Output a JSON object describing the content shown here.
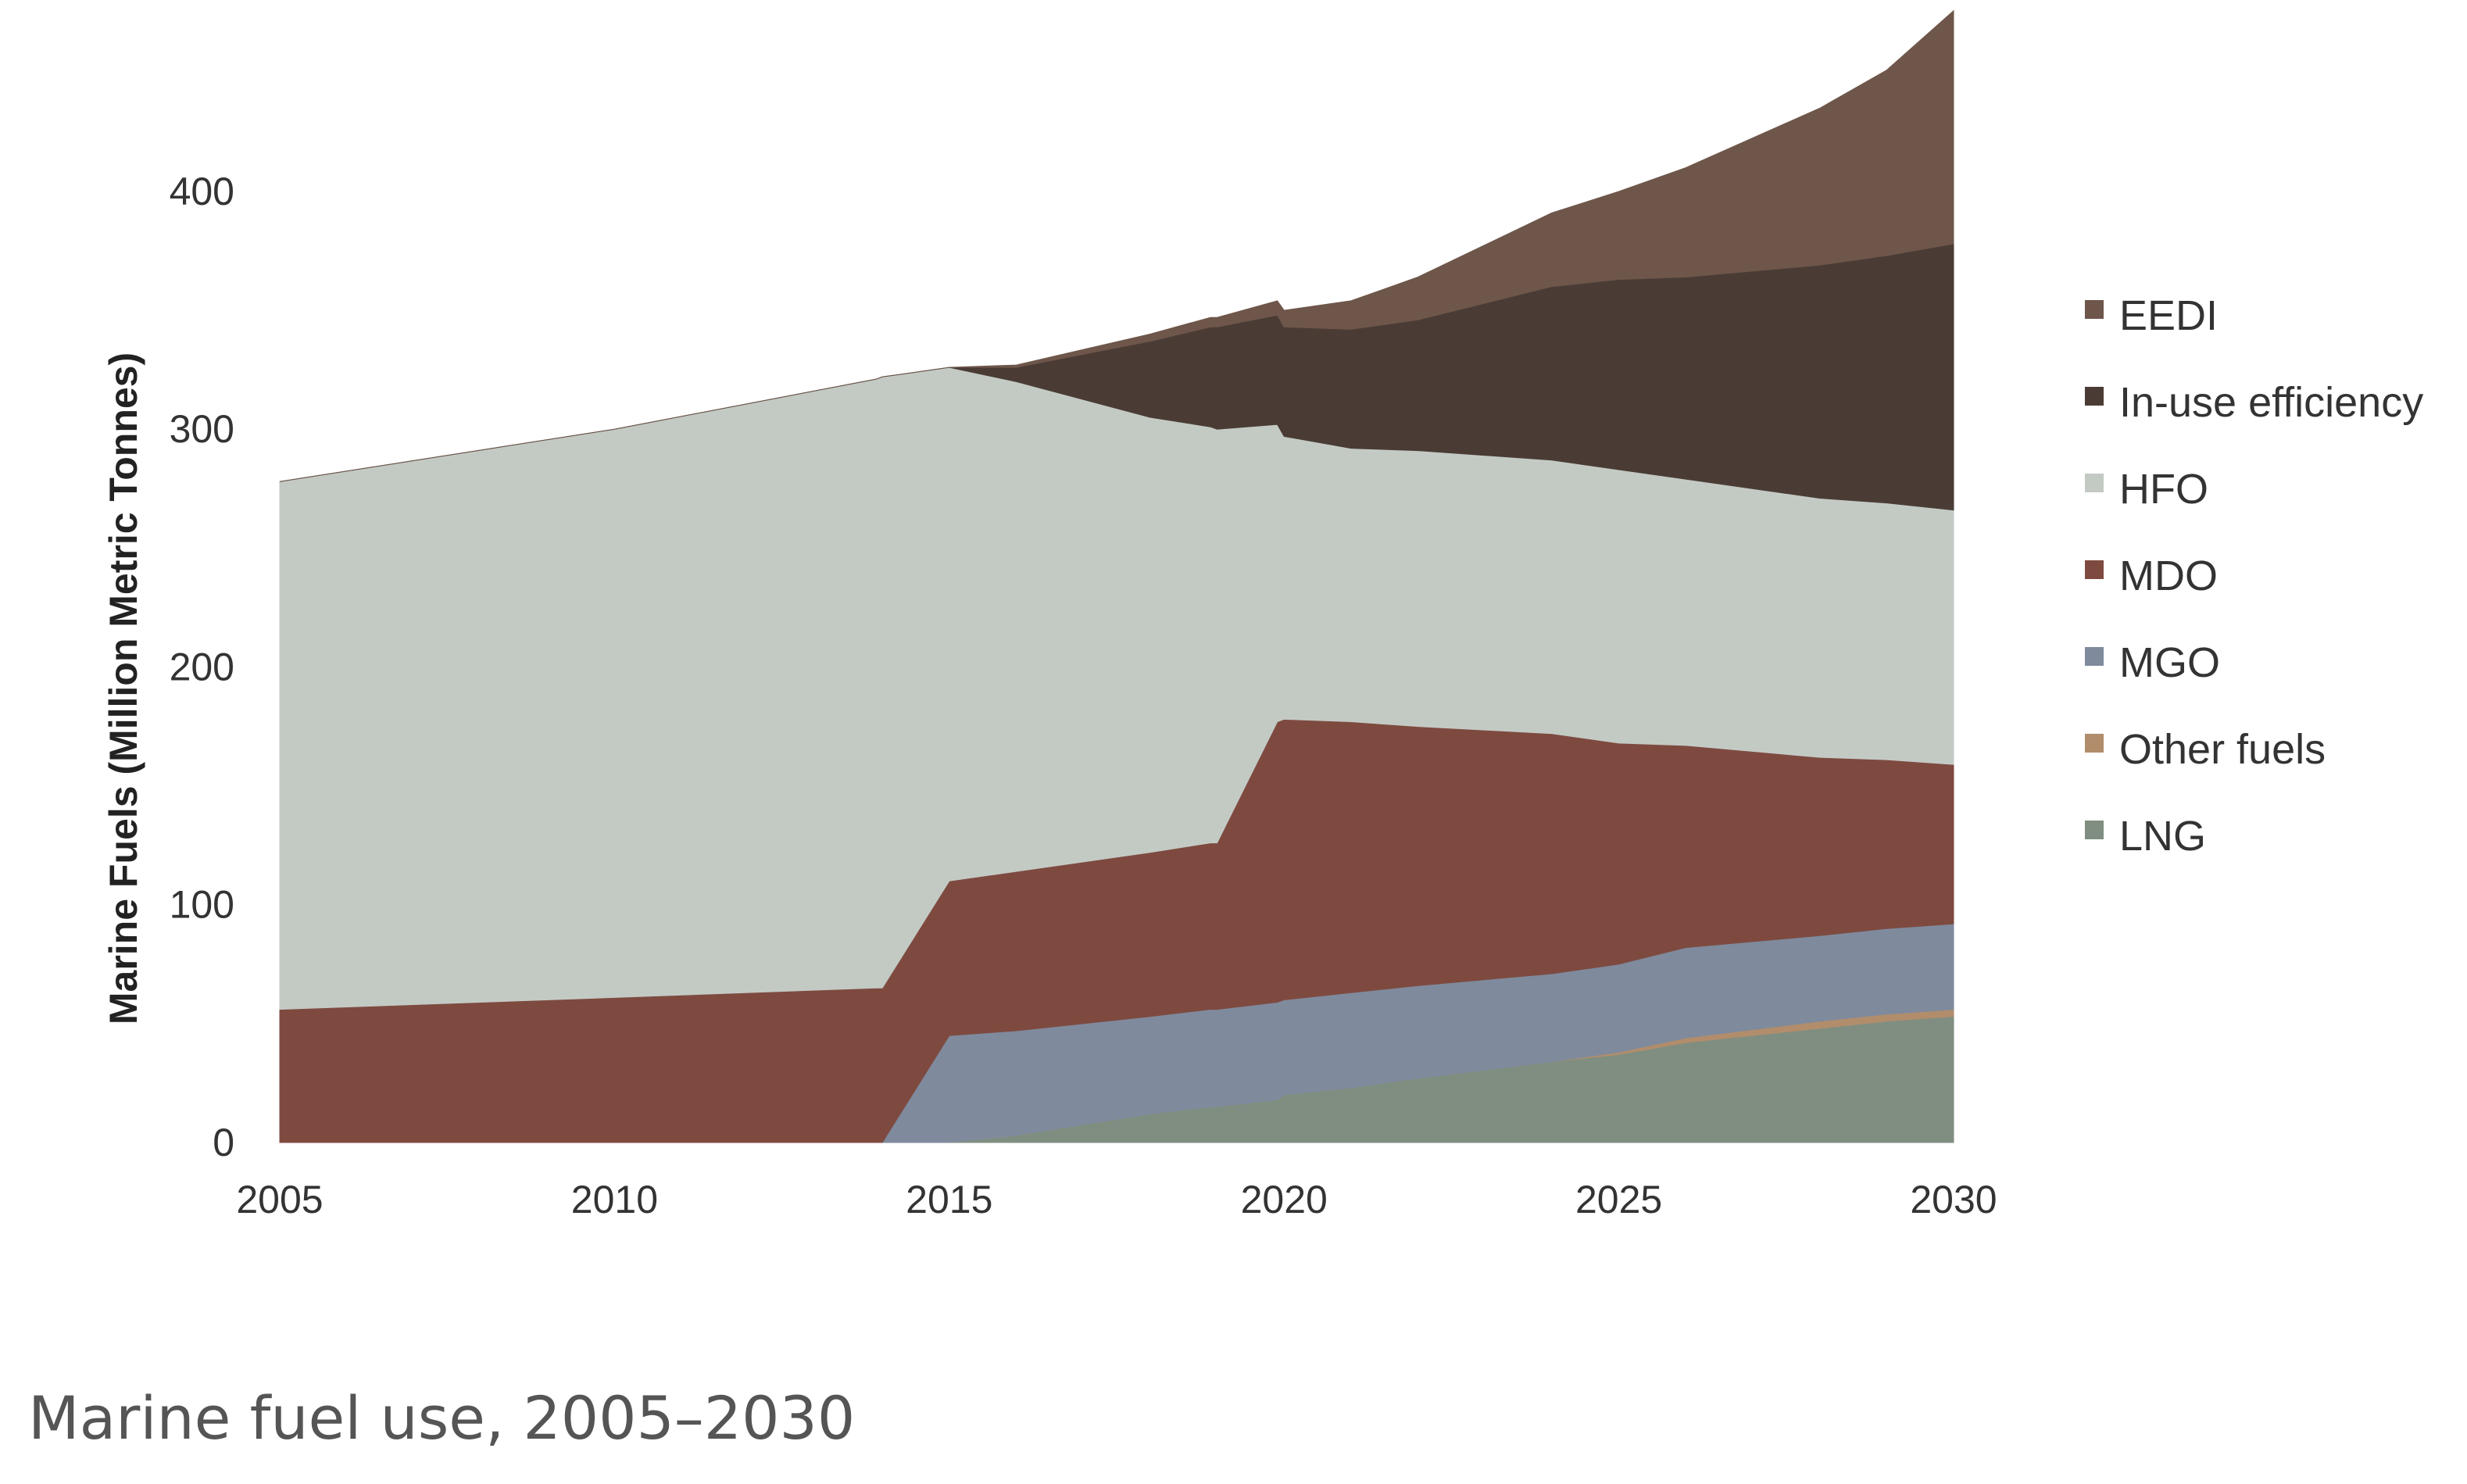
{
  "caption": "Marine fuel use, 2005–2030",
  "chart_data": {
    "type": "area",
    "stacked": true,
    "title": "",
    "xlabel": "",
    "ylabel": "Marine Fuels (Million Metric Tonnes)",
    "xlim": [
      2005,
      2030
    ],
    "ylim": [
      0,
      470
    ],
    "x_ticks": [
      2005,
      2010,
      2015,
      2020,
      2025,
      2030
    ],
    "y_ticks": [
      0,
      100,
      200,
      300,
      400
    ],
    "grid": false,
    "legend_position": "right",
    "x": [
      2005,
      2010,
      2013.9,
      2014,
      2015,
      2016,
      2018,
      2018.9,
      2019,
      2019.9,
      2020,
      2021,
      2022,
      2024,
      2025,
      2026,
      2028,
      2029,
      2030
    ],
    "series": [
      {
        "name": "LNG",
        "color": "#7f8e80",
        "values": [
          0,
          0,
          0,
          0,
          0,
          3,
          12,
          15,
          15,
          18,
          20,
          23,
          27,
          34,
          37,
          42,
          48,
          51,
          53
        ]
      },
      {
        "name": "Other fuels",
        "color": "#b18d6c",
        "values": [
          0,
          0,
          0,
          0,
          0,
          0,
          0,
          0,
          0,
          0,
          0,
          0,
          0,
          0,
          1,
          2,
          3,
          3,
          3
        ]
      },
      {
        "name": "MGO",
        "color": "#7f8a9d",
        "values": [
          0,
          0,
          0,
          0,
          45,
          44,
          41,
          41,
          41,
          41,
          40,
          40,
          39,
          37,
          37,
          38,
          36,
          36,
          36
        ]
      },
      {
        "name": "MDO",
        "color": "#7e4a40",
        "values": [
          56,
          61,
          65,
          65,
          65,
          67,
          69,
          70,
          70,
          118,
          118,
          114,
          109,
          101,
          93,
          85,
          75,
          71,
          67
        ]
      },
      {
        "name": "HFO",
        "color": "#c3cac4",
        "values": [
          222,
          239,
          256,
          257,
          216,
          206,
          183,
          175,
          174,
          125,
          119,
          115,
          116,
          115,
          115,
          112,
          109,
          108,
          107
        ]
      },
      {
        "name": "In-use efficiency",
        "color": "#4a3c35",
        "values": [
          0,
          0,
          0,
          0,
          0,
          6,
          32,
          42,
          43,
          46,
          46,
          50,
          55,
          73,
          80,
          85,
          98,
          104,
          112
        ]
      },
      {
        "name": "EEDI",
        "color": "#6e564a",
        "values": [
          0,
          0,
          0,
          0,
          0,
          1,
          3,
          4,
          4,
          6,
          7,
          12,
          18,
          31,
          37,
          46,
          66,
          78,
          98
        ]
      }
    ],
    "legend_order": [
      "EEDI",
      "In-use efficiency",
      "HFO",
      "MDO",
      "MGO",
      "Other fuels",
      "LNG"
    ]
  }
}
